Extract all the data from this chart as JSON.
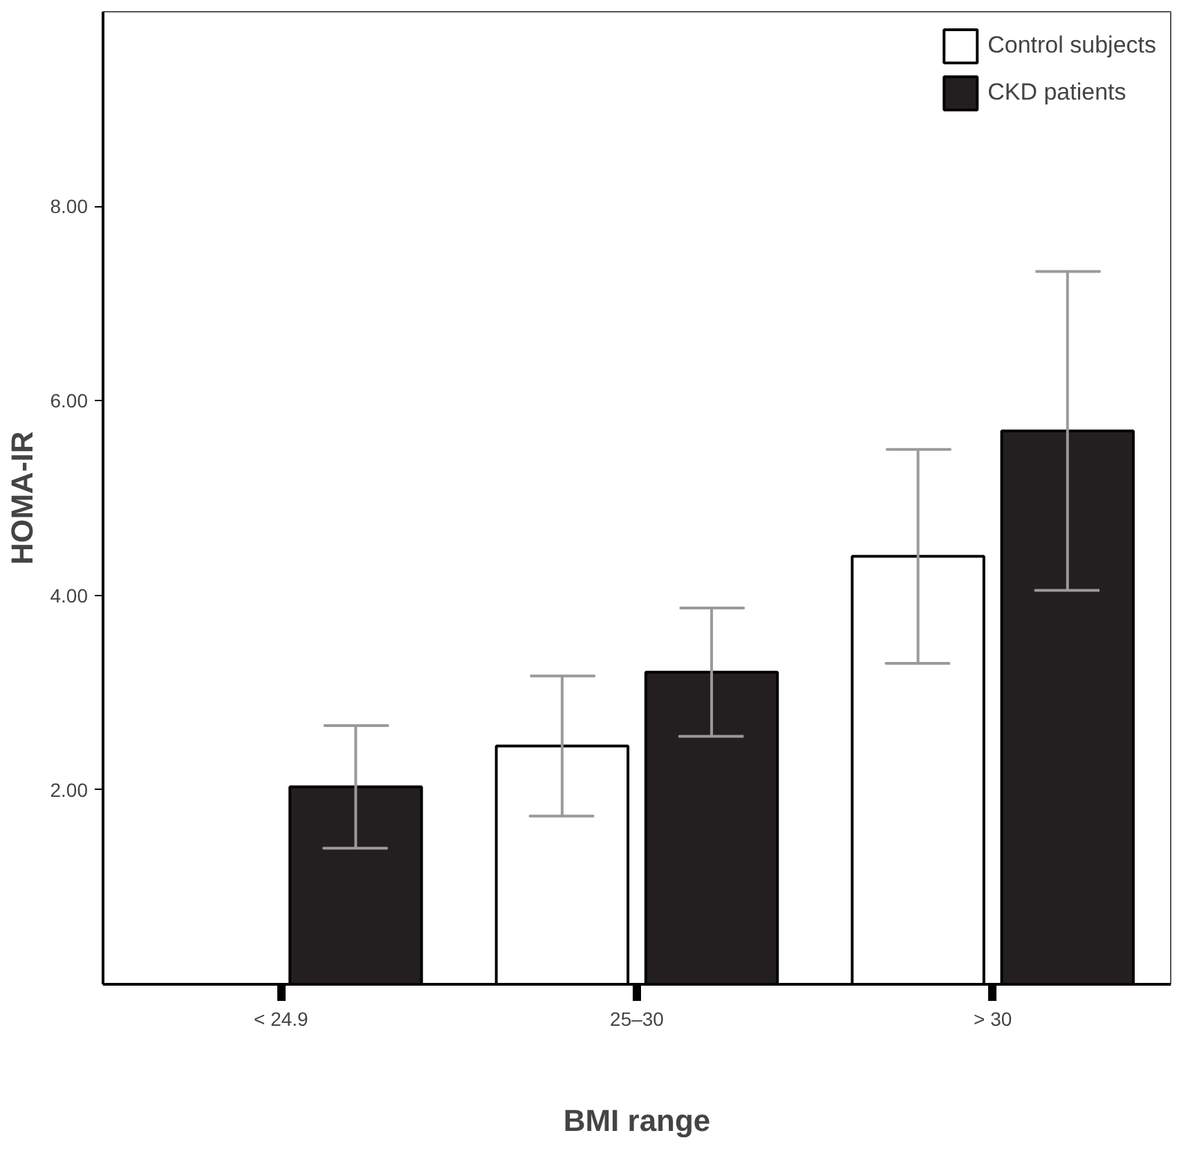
{
  "chart_data": {
    "type": "bar",
    "xlabel": "BMI range",
    "ylabel": "HOMA-IR",
    "categories": [
      "< 24.9",
      "25–30",
      "> 30"
    ],
    "series": [
      {
        "name": "Control subjects",
        "color": "#ffffff",
        "values": [
          null,
          2.45,
          4.4
        ],
        "errors": [
          null,
          0.72,
          1.1
        ]
      },
      {
        "name": "CKD patients",
        "color": "#231f20",
        "values": [
          2.03,
          3.21,
          5.69
        ],
        "errors": [
          0.63,
          0.66,
          1.64
        ]
      }
    ],
    "ylim": [
      0,
      10
    ],
    "yticks": [
      {
        "value": 2,
        "label": "2.00"
      },
      {
        "value": 4,
        "label": "4.00"
      },
      {
        "value": 6,
        "label": "6.00"
      },
      {
        "value": 8,
        "label": "8.00"
      }
    ],
    "grid": false,
    "legend": "top right"
  }
}
